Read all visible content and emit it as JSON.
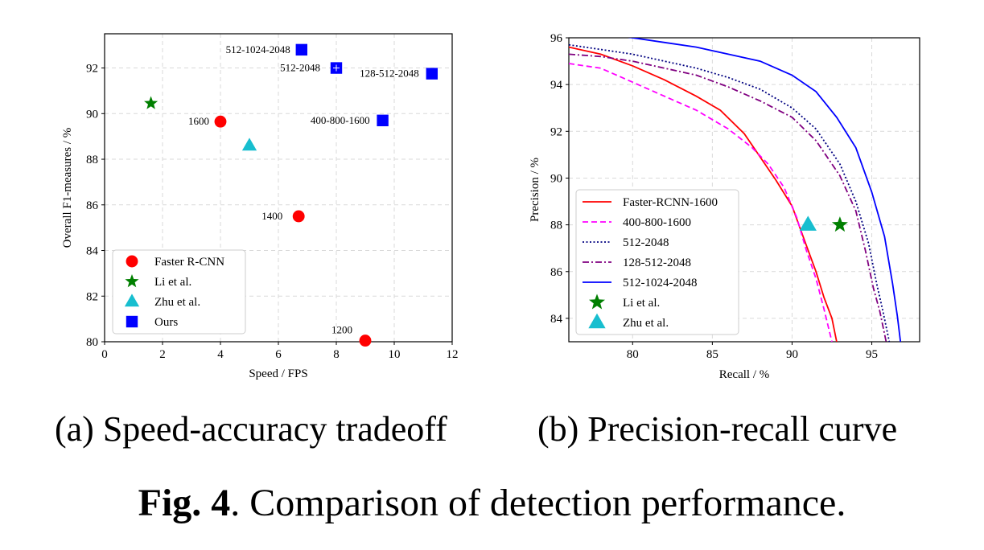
{
  "figure": {
    "caption_label": "Fig. 4",
    "caption_text": ". Comparison of detection performance."
  },
  "chart_data": [
    {
      "type": "scatter",
      "subcaption": "(a) Speed-accuracy tradeoff",
      "xlabel": "Speed / FPS",
      "ylabel": "Overall F1-measures / %",
      "xlim": [
        0,
        12
      ],
      "ylim": [
        80,
        93.5
      ],
      "xticks": [
        "0",
        "2",
        "4",
        "6",
        "8",
        "10",
        "12"
      ],
      "yticks": [
        "80",
        "82",
        "84",
        "86",
        "88",
        "90",
        "92"
      ],
      "grid": true,
      "legend_position": "lower-left",
      "series": [
        {
          "name": "Faster R-CNN",
          "marker": "circle",
          "color": "#ff0000",
          "points": [
            {
              "x": 4.0,
              "y": 89.65,
              "label": "1600"
            },
            {
              "x": 6.7,
              "y": 85.5,
              "label": "1400"
            },
            {
              "x": 9.0,
              "y": 80.05,
              "label": "1200"
            }
          ]
        },
        {
          "name": "Li et al.",
          "marker": "star",
          "color": "#007f00",
          "points": [
            {
              "x": 1.6,
              "y": 90.45,
              "label": ""
            }
          ]
        },
        {
          "name": "Zhu et al.",
          "marker": "triangle",
          "color": "#17becf",
          "points": [
            {
              "x": 5.0,
              "y": 88.6,
              "label": ""
            }
          ]
        },
        {
          "name": "Ours",
          "marker": "square",
          "color": "#0000ff",
          "points": [
            {
              "x": 6.8,
              "y": 92.8,
              "label": "512-1024-2048"
            },
            {
              "x": 8.0,
              "y": 92.0,
              "label": "512-2048"
            },
            {
              "x": 11.3,
              "y": 91.75,
              "label": "128-512-2048"
            },
            {
              "x": 9.6,
              "y": 89.7,
              "label": "400-800-1600"
            }
          ]
        }
      ]
    },
    {
      "type": "line",
      "subcaption": "(b) Precision-recall curve",
      "xlabel": "Recall / %",
      "ylabel": "Precision / %",
      "xlim": [
        76,
        98
      ],
      "ylim": [
        83,
        96
      ],
      "xticks": [
        "80",
        "85",
        "90",
        "95"
      ],
      "yticks": [
        "84",
        "86",
        "88",
        "90",
        "92",
        "94",
        "96"
      ],
      "grid": true,
      "legend_position": "lower-left",
      "series": [
        {
          "name": "Faster-RCNN-1600",
          "color": "#ff0000",
          "dash": "solid",
          "x": [
            76.0,
            78.0,
            80.0,
            82.0,
            84.0,
            85.5,
            87.0,
            88.0,
            89.0,
            90.0,
            90.8,
            91.5,
            92.0,
            92.5,
            92.8
          ],
          "y": [
            95.6,
            95.3,
            94.8,
            94.2,
            93.5,
            92.9,
            91.9,
            90.9,
            89.9,
            88.8,
            87.3,
            86.0,
            84.9,
            84.0,
            83.0
          ]
        },
        {
          "name": "400-800-1600",
          "color": "#ff00ff",
          "dash": "dashed",
          "x": [
            76.0,
            78.0,
            80.0,
            82.0,
            84.0,
            86.0,
            87.5,
            88.5,
            89.5,
            90.3,
            90.9,
            91.5,
            92.0,
            92.5
          ],
          "y": [
            94.9,
            94.7,
            94.1,
            93.5,
            92.9,
            92.1,
            91.3,
            90.6,
            89.6,
            88.3,
            86.9,
            85.7,
            84.4,
            83.0
          ]
        },
        {
          "name": "512-2048",
          "color": "#000080",
          "dash": "dotted",
          "x": [
            76.0,
            78.0,
            80.0,
            82.0,
            84.0,
            86.0,
            88.0,
            90.0,
            91.5,
            93.0,
            94.0,
            94.8,
            95.3,
            95.7,
            96.1
          ],
          "y": [
            95.7,
            95.5,
            95.3,
            95.0,
            94.7,
            94.3,
            93.8,
            93.0,
            92.1,
            90.6,
            89.0,
            87.2,
            85.5,
            84.3,
            83.0
          ]
        },
        {
          "name": "128-512-2048",
          "color": "#800080",
          "dash": "dashdot",
          "x": [
            76.0,
            78.0,
            80.0,
            82.0,
            84.0,
            86.0,
            88.0,
            90.0,
            91.5,
            93.0,
            94.0,
            94.6,
            95.1,
            95.5,
            95.9
          ],
          "y": [
            95.3,
            95.2,
            95.0,
            94.7,
            94.4,
            93.9,
            93.3,
            92.6,
            91.6,
            90.1,
            88.6,
            86.9,
            85.3,
            84.3,
            83.0
          ]
        },
        {
          "name": "512-1024-2048",
          "color": "#0000ff",
          "dash": "solid",
          "x": [
            76.0,
            78.0,
            80.0,
            82.0,
            84.0,
            86.0,
            88.0,
            90.0,
            91.5,
            92.8,
            94.0,
            95.0,
            95.8,
            96.3,
            96.6,
            96.8
          ],
          "y": [
            96.3,
            96.2,
            96.0,
            95.8,
            95.6,
            95.3,
            95.0,
            94.4,
            93.7,
            92.6,
            91.3,
            89.4,
            87.5,
            85.5,
            84.1,
            83.0
          ]
        },
        {
          "name": "Li et al.",
          "marker": "star",
          "color": "#007f00",
          "x": [
            93.0
          ],
          "y": [
            88.0
          ]
        },
        {
          "name": "Zhu et al.",
          "marker": "triangle",
          "color": "#17becf",
          "x": [
            91.0
          ],
          "y": [
            88.0
          ]
        }
      ]
    }
  ]
}
